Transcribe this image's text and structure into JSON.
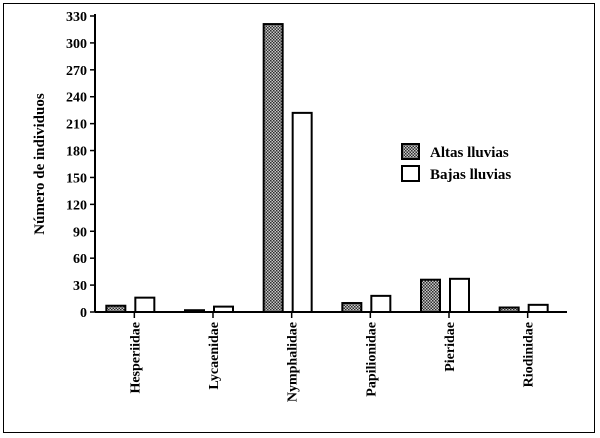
{
  "chart_data": {
    "type": "bar",
    "categories": [
      "Hesperiidae",
      "Lycaenidae",
      "Nymphalidae",
      "Papilionidae",
      "Pieridae",
      "Riodinidae"
    ],
    "series": [
      {
        "name": "Altas lluvias",
        "values": [
          7,
          2,
          321,
          10,
          36,
          5
        ],
        "fill": "crosshatch"
      },
      {
        "name": "Bajas lluvias",
        "values": [
          16,
          6,
          222,
          18,
          37,
          8
        ],
        "fill": "white"
      }
    ],
    "ylabel": "Número de individuos",
    "xlabel": "",
    "ylim": [
      0,
      330
    ],
    "yticks": [
      0,
      30,
      60,
      90,
      120,
      150,
      180,
      210,
      240,
      270,
      300,
      330
    ],
    "legend_position": "right",
    "grid": false,
    "colors": {
      "stroke": "#000000",
      "hatch_dark": "#3a3a3a",
      "hatch_light": "#bfbfbf"
    }
  }
}
